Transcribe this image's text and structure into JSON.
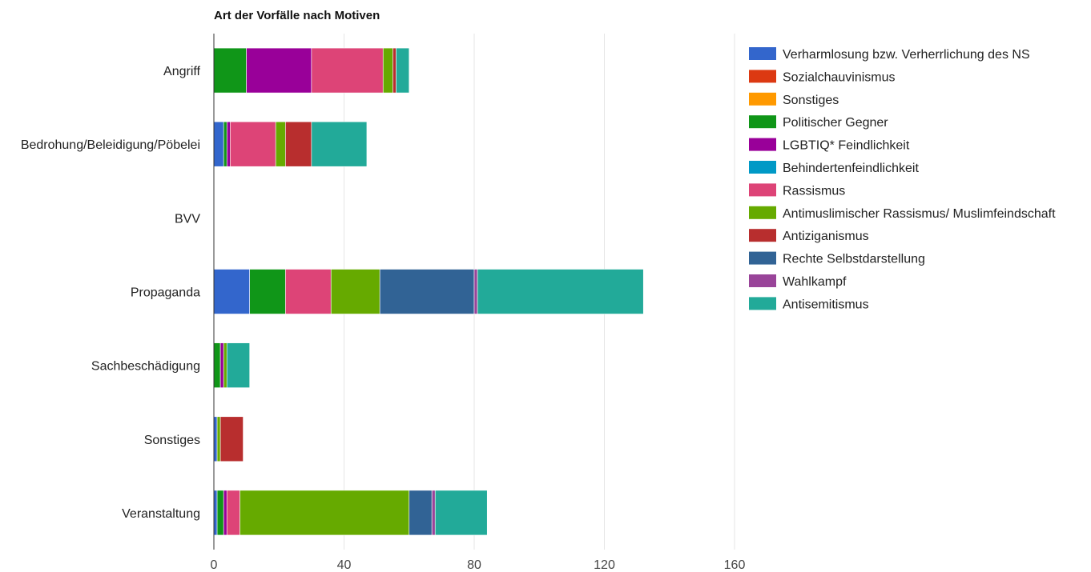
{
  "chart_data": {
    "type": "bar",
    "orientation": "horizontal",
    "stacked": true,
    "title": "Art der Vorfälle nach Motiven",
    "xlabel": "",
    "ylabel": "",
    "xlim": [
      0,
      160
    ],
    "xticks": [
      "0",
      "40",
      "80",
      "120",
      "160"
    ],
    "grid": true,
    "legend_position": "right",
    "categories": [
      "Angriff",
      "Bedrohung/Beleidigung/Pöbelei",
      "BVV",
      "Propaganda",
      "Sachbeschädigung",
      "Sonstiges",
      "Veranstaltung"
    ],
    "series": [
      {
        "name": "Verharmlosung bzw. Verherrlichung des NS",
        "color": "#3366cc",
        "values": [
          0,
          3,
          0,
          11,
          0,
          1,
          1
        ]
      },
      {
        "name": "Sozialchauvinismus",
        "color": "#dc3912",
        "values": [
          0,
          0,
          0,
          0,
          0,
          0,
          0
        ]
      },
      {
        "name": "Sonstiges",
        "color": "#ff9900",
        "values": [
          0,
          0,
          0,
          0,
          0,
          0,
          0
        ]
      },
      {
        "name": "Politischer Gegner",
        "color": "#109618",
        "values": [
          10,
          1,
          0,
          11,
          2,
          0,
          2
        ]
      },
      {
        "name": "LGBTIQ* Feindlichkeit",
        "color": "#990099",
        "values": [
          20,
          1,
          0,
          0,
          1,
          0,
          1
        ]
      },
      {
        "name": "Behindertenfeindlichkeit",
        "color": "#0099c6",
        "values": [
          0,
          0,
          0,
          0,
          0,
          0,
          0
        ]
      },
      {
        "name": "Rassismus",
        "color": "#dd4477",
        "values": [
          22,
          14,
          0,
          14,
          0,
          0,
          4
        ]
      },
      {
        "name": "Antimuslimischer Rassismus/ Muslimfeindschaft",
        "color": "#66aa00",
        "values": [
          3,
          3,
          0,
          15,
          1,
          1,
          52
        ]
      },
      {
        "name": "Antiziganismus",
        "color": "#b82e2e",
        "values": [
          1,
          8,
          0,
          0,
          0,
          7,
          0
        ]
      },
      {
        "name": "Rechte Selbstdarstellung",
        "color": "#316395",
        "values": [
          0,
          0,
          0,
          29,
          0,
          0,
          7
        ]
      },
      {
        "name": "Wahlkampf",
        "color": "#994499",
        "values": [
          0,
          0,
          0,
          1,
          0,
          0,
          1
        ]
      },
      {
        "name": "Antisemitismus",
        "color": "#22aa99",
        "values": [
          4,
          17,
          0,
          51,
          7,
          0,
          16
        ]
      }
    ]
  }
}
